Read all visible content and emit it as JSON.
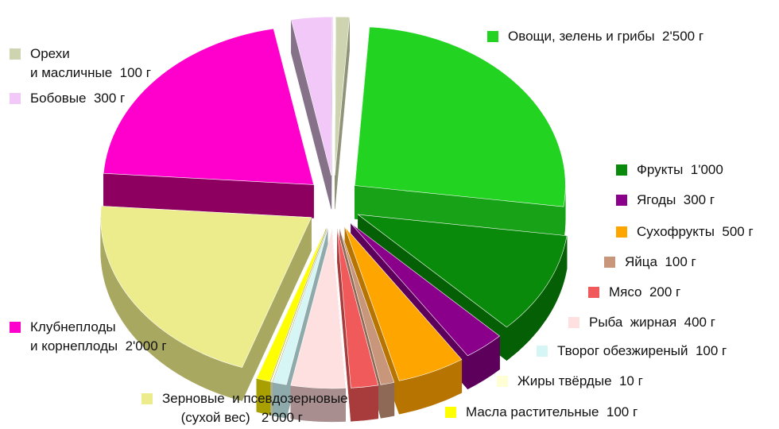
{
  "chart_data": {
    "type": "pie",
    "title": "",
    "unit": "г",
    "slices": [
      {
        "label": "Овощи, зелень и грибы  2'500 г",
        "value": 2500,
        "color": "#22d322",
        "side": "#17a217"
      },
      {
        "label": "Фрукты  1'000",
        "value": 1000,
        "color": "#0a8a0a",
        "side": "#056005"
      },
      {
        "label": "Ягоды  300 г",
        "value": 300,
        "color": "#8b008b",
        "side": "#5c005c"
      },
      {
        "label": "Сухофрукты  500 г",
        "value": 500,
        "color": "#ffa500",
        "side": "#b87400"
      },
      {
        "label": "Яйца  100 г",
        "value": 100,
        "color": "#c8967a",
        "side": "#8e6a56"
      },
      {
        "label": "Мясо  200 г",
        "value": 200,
        "color": "#f05a5a",
        "side": "#a83c3c"
      },
      {
        "label": "Рыба  жирная  400 г",
        "value": 400,
        "color": "#ffe0e0",
        "side": "#a88e8e"
      },
      {
        "label": "Творог обезжиреный  100 г",
        "value": 100,
        "color": "#d6f6f6",
        "side": "#8eaaaa"
      },
      {
        "label": "Жиры твёрдые  10 г",
        "value": 10,
        "color": "#ffffd6",
        "side": "#b0b090"
      },
      {
        "label": "Масла растительные  100 г",
        "value": 100,
        "color": "#ffff00",
        "side": "#a8a000"
      },
      {
        "label": "Зерновые  и псевдозерновые\n     (сухой вес)   2'000 г",
        "value": 2000,
        "color": "#ecec8c",
        "side": "#a8a860"
      },
      {
        "label": "Клубнеплоды\nи корнеплоды  2'000 г",
        "value": 2000,
        "color": "#ff00cc",
        "side": "#8e0060"
      },
      {
        "label": "Бобовые  300 г",
        "value": 300,
        "color": "#f2c8f8",
        "side": "#857289"
      },
      {
        "label": "Орехи\nи масличные  100 г",
        "value": 100,
        "color": "#cfd4b0",
        "side": "#8f9478"
      }
    ]
  }
}
